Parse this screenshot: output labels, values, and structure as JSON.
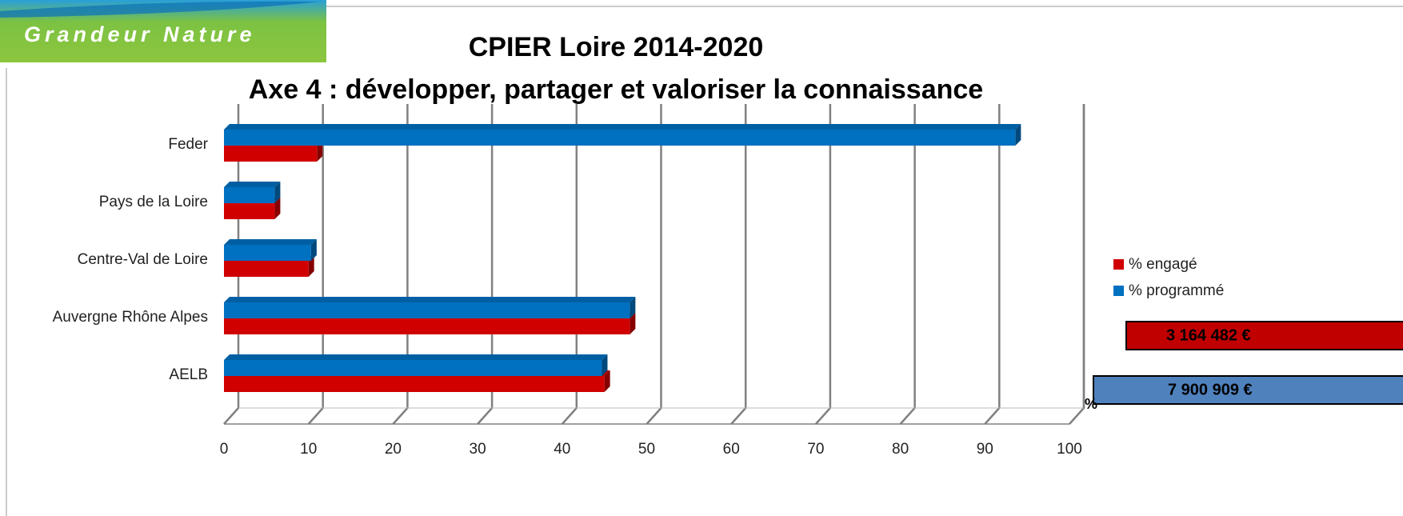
{
  "logo": "Grandeur Nature",
  "chart_data": {
    "type": "bar",
    "title": "CPIER Loire 2014-2020",
    "subtitle": "Axe 4 : développer, partager et valoriser la connaissance",
    "categories": [
      "Feder",
      "Pays de la Loire",
      "Centre-Val de Loire",
      "Auvergne Rhône Alpes",
      "AELB"
    ],
    "series": [
      {
        "name": "% engagé",
        "color": "#d00000",
        "values": [
          11,
          6,
          10,
          48,
          45
        ]
      },
      {
        "name": "% programmé",
        "color": "#0070c0",
        "values": [
          93.6,
          6,
          10.3,
          48,
          44.7
        ]
      }
    ],
    "xlim": [
      0,
      100
    ],
    "xticks": [
      0,
      10,
      20,
      30,
      40,
      50,
      60,
      70,
      80,
      90,
      100
    ],
    "grid": true,
    "legend": "right",
    "annotations": [
      "3 164 482 €",
      "7 900 909 €",
      "%"
    ]
  }
}
